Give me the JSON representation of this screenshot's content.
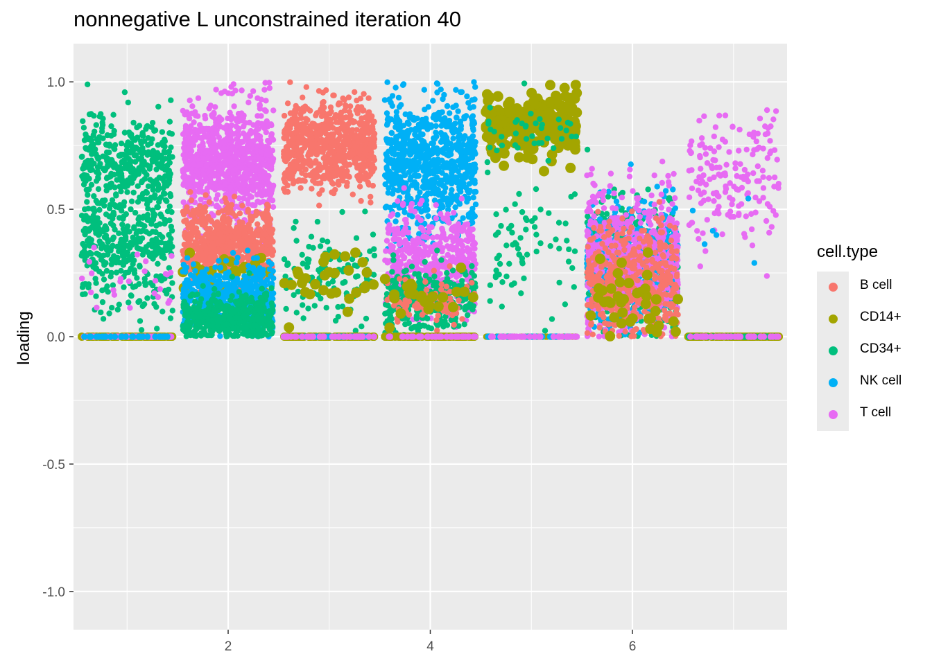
{
  "chart_data": {
    "type": "scatter",
    "title": "nonnegative L unconstrained iteration 40",
    "xlabel": "",
    "ylabel": "loading",
    "xlim": [
      0.5,
      7.5
    ],
    "ylim": [
      -1.15,
      1.15
    ],
    "x_ticks": [
      2,
      4,
      6
    ],
    "x_tick_labels": [
      "2",
      "4",
      "6"
    ],
    "y_ticks": [
      -1.0,
      -0.5,
      0.0,
      0.5,
      1.0
    ],
    "y_tick_labels": [
      "-1.0",
      "-0.5",
      "0.0",
      "0.5",
      "1.0"
    ],
    "grid": true,
    "background": "#ebebeb",
    "legend": {
      "title": "cell.type",
      "placement": "right",
      "entries": [
        {
          "name": "B cell",
          "color": "#F8766D"
        },
        {
          "name": "CD14+",
          "color": "#A3A500"
        },
        {
          "name": "CD34+",
          "color": "#00BF7D"
        },
        {
          "name": "NK cell",
          "color": "#00B0F6"
        },
        {
          "name": "T cell",
          "color": "#E76BF3"
        }
      ]
    },
    "factors": [
      {
        "x": 1,
        "clusters": [
          {
            "type": "CD34+",
            "y_mean": 0.69,
            "y_sd": 0.09,
            "n": 380
          },
          {
            "type": "CD34+",
            "y_mean": 0.37,
            "y_sd": 0.09,
            "n": 320
          },
          {
            "type": "CD34+",
            "y_mean": 0.15,
            "y_sd": 0.07,
            "n": 60
          },
          {
            "type": "T cell",
            "y_mean": 0.18,
            "y_sd": 0.07,
            "n": 25
          },
          {
            "type": "CD14+",
            "y_mean": 0.0,
            "y_sd": 0.0,
            "n": 90,
            "big": true
          },
          {
            "type": "T cell",
            "y_mean": 0.0,
            "y_sd": 0.0,
            "n": 50
          },
          {
            "type": "NK cell",
            "y_mean": 0.0,
            "y_sd": 0.0,
            "n": 30
          }
        ]
      },
      {
        "x": 2,
        "clusters": [
          {
            "type": "T cell",
            "y_mean": 0.68,
            "y_sd": 0.12,
            "n": 900
          },
          {
            "type": "B cell",
            "y_mean": 0.36,
            "y_sd": 0.07,
            "n": 650
          },
          {
            "type": "CD14+",
            "y_mean": 0.25,
            "y_sd": 0.05,
            "n": 30,
            "big": true
          },
          {
            "type": "NK cell",
            "y_mean": 0.16,
            "y_sd": 0.06,
            "n": 500
          },
          {
            "type": "CD34+",
            "y_mean": 0.07,
            "y_sd": 0.05,
            "n": 450
          }
        ]
      },
      {
        "x": 3,
        "clusters": [
          {
            "type": "B cell",
            "y_mean": 0.75,
            "y_sd": 0.08,
            "n": 750
          },
          {
            "type": "CD34+",
            "y_mean": 0.24,
            "y_sd": 0.09,
            "n": 120
          },
          {
            "type": "CD14+",
            "y_mean": 0.24,
            "y_sd": 0.07,
            "n": 30,
            "big": true
          },
          {
            "type": "CD14+",
            "y_mean": 0.0,
            "y_sd": 0.0,
            "n": 80,
            "big": true
          },
          {
            "type": "NK cell",
            "y_mean": 0.0,
            "y_sd": 0.0,
            "n": 40
          },
          {
            "type": "T cell",
            "y_mean": 0.0,
            "y_sd": 0.0,
            "n": 40
          }
        ]
      },
      {
        "x": 4,
        "clusters": [
          {
            "type": "NK cell",
            "y_mean": 0.68,
            "y_sd": 0.13,
            "n": 750
          },
          {
            "type": "T cell",
            "y_mean": 0.28,
            "y_sd": 0.1,
            "n": 500
          },
          {
            "type": "CD34+",
            "y_mean": 0.15,
            "y_sd": 0.06,
            "n": 350
          },
          {
            "type": "B cell",
            "y_mean": 0.14,
            "y_sd": 0.05,
            "n": 80
          },
          {
            "type": "CD14+",
            "y_mean": 0.16,
            "y_sd": 0.06,
            "n": 25,
            "big": true
          },
          {
            "type": "CD14+",
            "y_mean": 0.0,
            "y_sd": 0.0,
            "n": 80,
            "big": true
          },
          {
            "type": "T cell",
            "y_mean": 0.0,
            "y_sd": 0.0,
            "n": 40
          }
        ]
      },
      {
        "x": 5,
        "clusters": [
          {
            "type": "CD14+",
            "y_mean": 0.83,
            "y_sd": 0.06,
            "n": 220,
            "big": true
          },
          {
            "type": "CD34+",
            "y_mean": 0.78,
            "y_sd": 0.06,
            "n": 40
          },
          {
            "type": "CD34+",
            "y_mean": 0.35,
            "y_sd": 0.13,
            "n": 70
          },
          {
            "type": "CD14+",
            "y_mean": 0.0,
            "y_sd": 0.0,
            "n": 60
          },
          {
            "type": "NK cell",
            "y_mean": 0.0,
            "y_sd": 0.0,
            "n": 30
          },
          {
            "type": "T cell",
            "y_mean": 0.0,
            "y_sd": 0.0,
            "n": 30
          }
        ]
      },
      {
        "x": 6,
        "clusters": [
          {
            "type": "CD34+",
            "y_mean": 0.28,
            "y_sd": 0.12,
            "n": 550
          },
          {
            "type": "NK cell",
            "y_mean": 0.28,
            "y_sd": 0.12,
            "n": 500
          },
          {
            "type": "T cell",
            "y_mean": 0.3,
            "y_sd": 0.13,
            "n": 650
          },
          {
            "type": "B cell",
            "y_mean": 0.22,
            "y_sd": 0.11,
            "n": 450
          },
          {
            "type": "CD14+",
            "y_mean": 0.15,
            "y_sd": 0.08,
            "n": 40,
            "big": true
          }
        ]
      },
      {
        "x": 7,
        "clusters": [
          {
            "type": "T cell",
            "y_mean": 0.62,
            "y_sd": 0.13,
            "n": 170
          },
          {
            "type": "CD14+",
            "y_mean": 0.0,
            "y_sd": 0.0,
            "n": 90,
            "big": true
          },
          {
            "type": "CD34+",
            "y_mean": 0.0,
            "y_sd": 0.0,
            "n": 60
          },
          {
            "type": "T cell",
            "y_mean": 0.0,
            "y_sd": 0.0,
            "n": 40
          },
          {
            "type": "NK cell",
            "y_mean": 0.38,
            "y_sd": 0.08,
            "n": 6
          }
        ]
      }
    ]
  }
}
